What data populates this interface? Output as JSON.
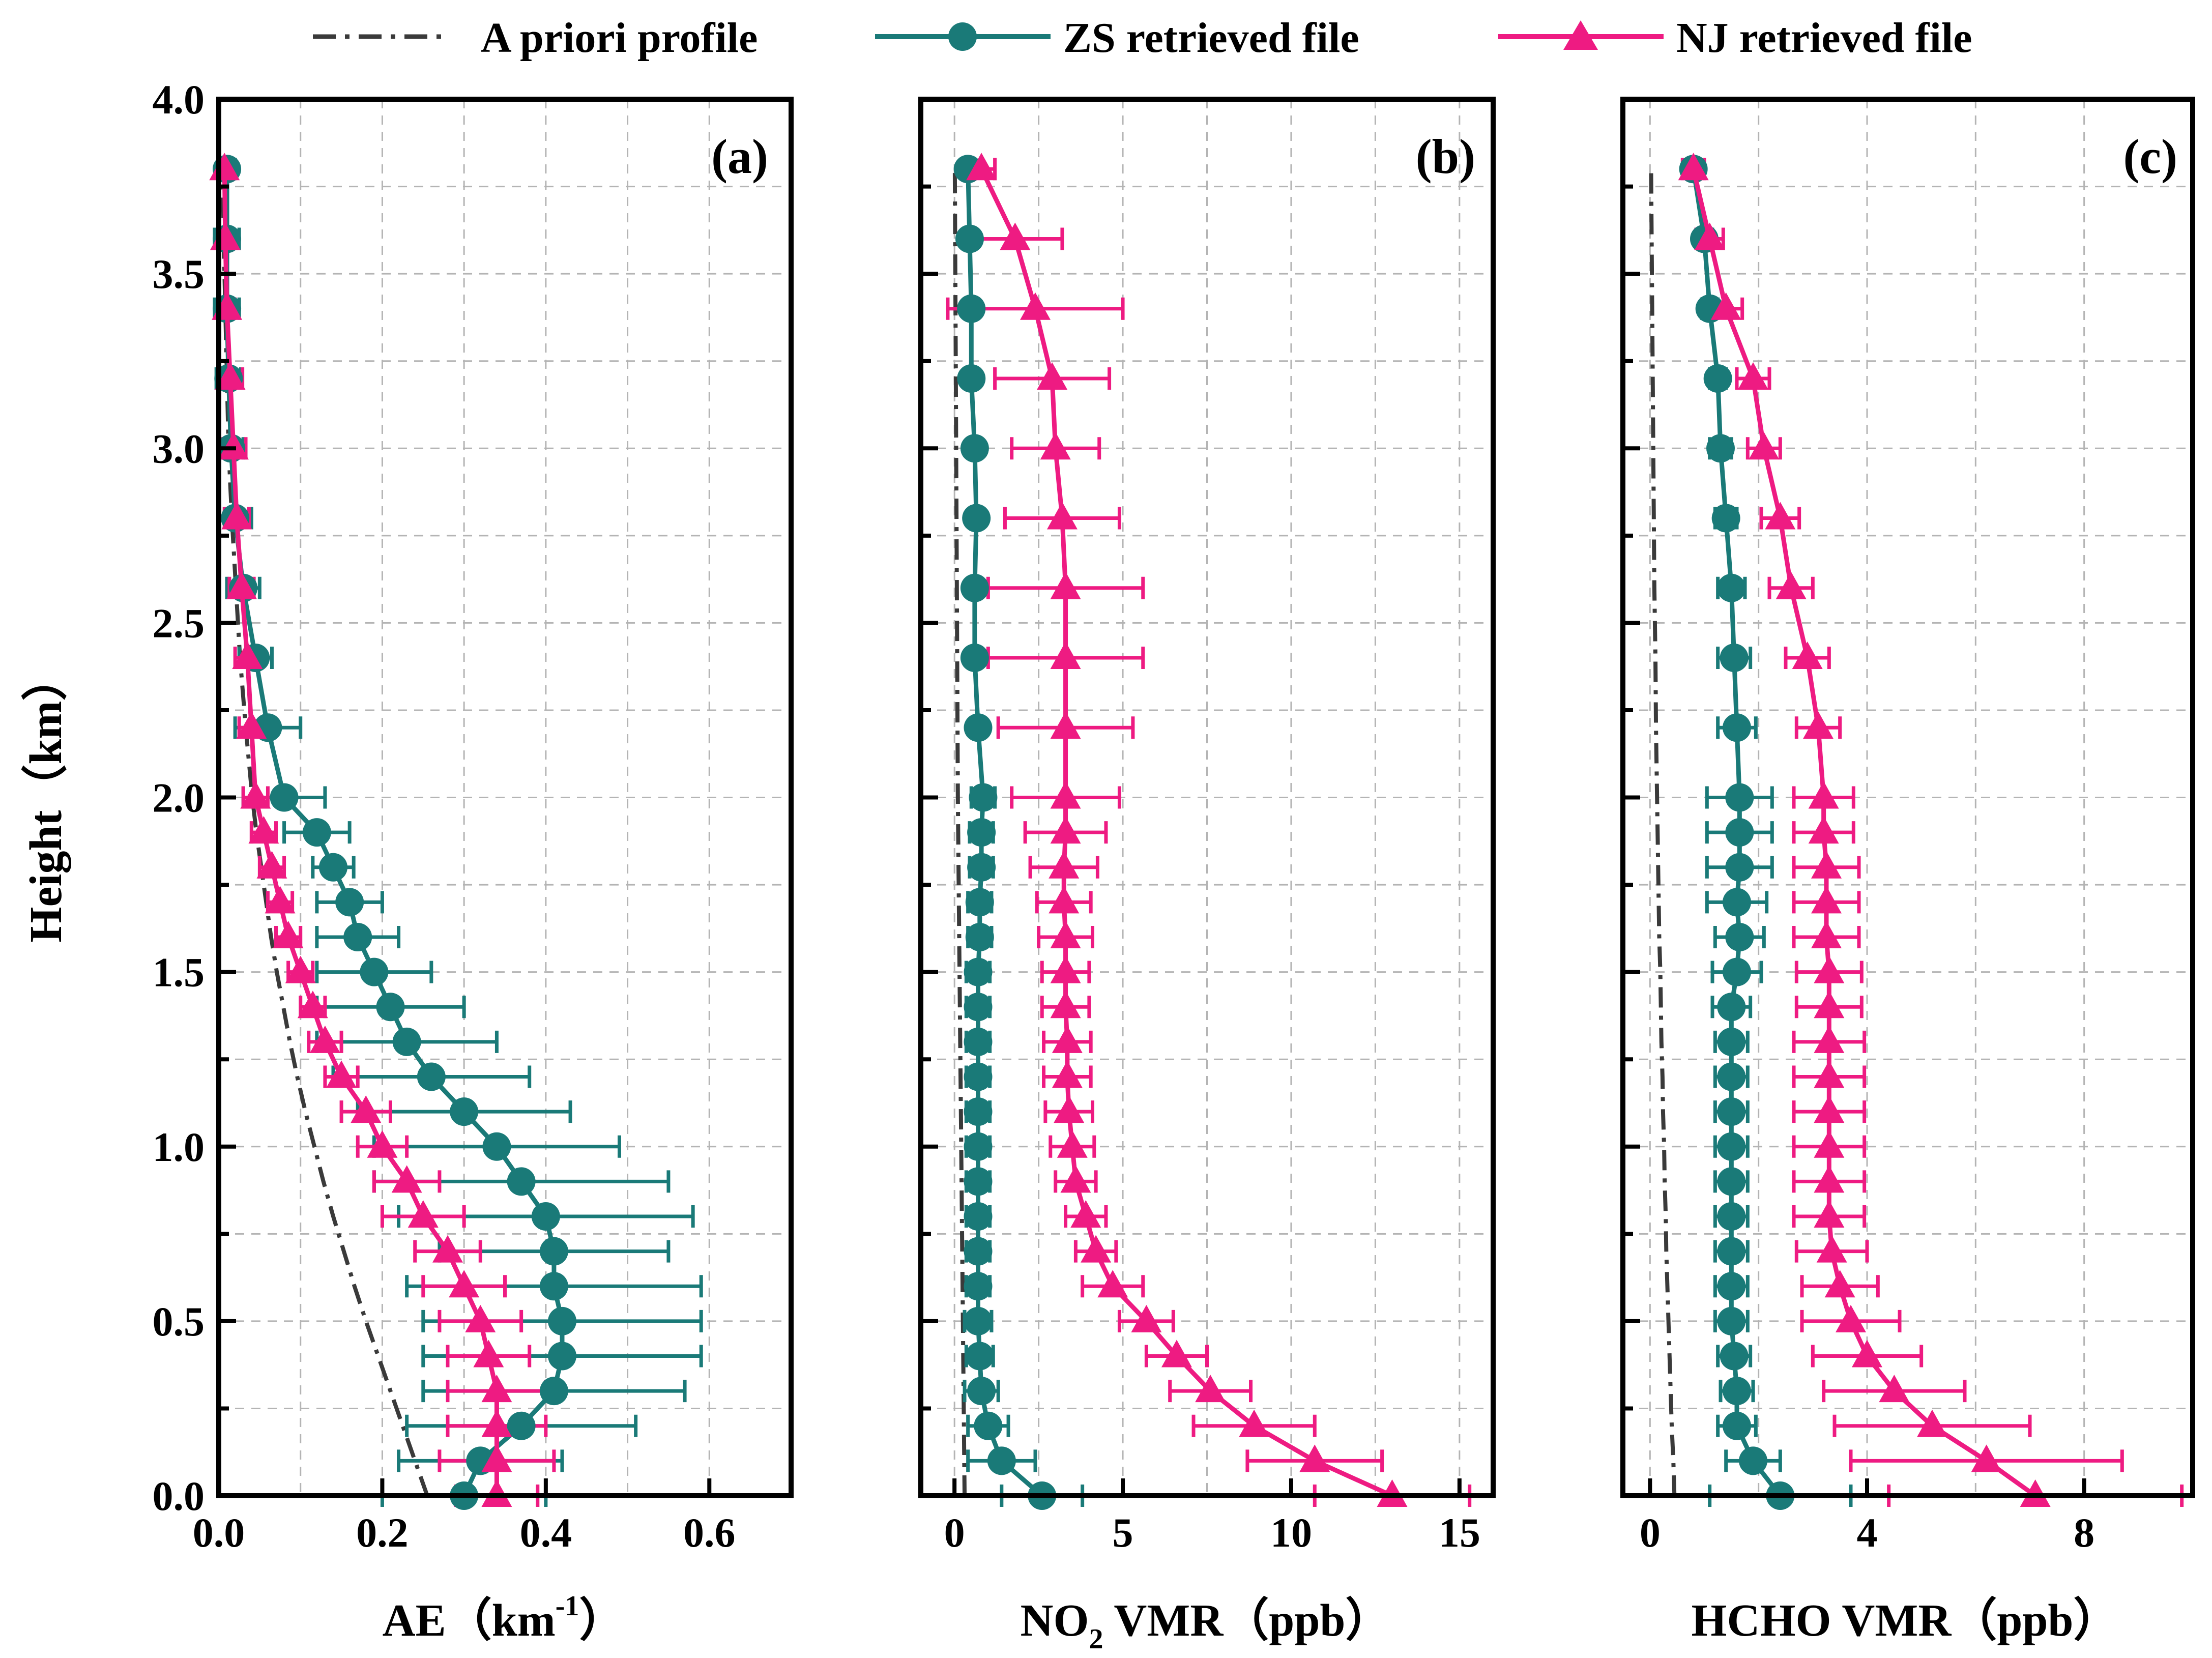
{
  "colors": {
    "apriori": "#3a3a3a",
    "zs": "#1a7a78",
    "nj": "#ee1b82",
    "grid": "#b4b4b4"
  },
  "legend": {
    "apriori": "A priori profile",
    "zs": "ZS retrieved file",
    "nj": "NJ retrieved file"
  },
  "chart_data": [
    {
      "type": "line",
      "panel_label": "(a)",
      "xlabel": "AE（km",
      "xlabel_sup": "-1",
      "xlabel_close": "）",
      "ylabel": "Height（km）",
      "xlim": [
        0,
        0.7
      ],
      "ylim": [
        0,
        4.0
      ],
      "xticks": [
        0.0,
        0.2,
        0.4,
        0.6
      ],
      "xtick_labels": [
        "0.0",
        "0.2",
        "0.4",
        "0.6"
      ],
      "yticks": [
        0.0,
        0.5,
        1.0,
        1.5,
        2.0,
        2.5,
        3.0,
        3.5,
        4.0
      ],
      "ytick_labels": [
        "0.0",
        "0.5",
        "1.0",
        "1.5",
        "2.0",
        "2.5",
        "3.0",
        "3.5",
        "4.0"
      ],
      "y": [
        0.0,
        0.1,
        0.2,
        0.3,
        0.4,
        0.5,
        0.6,
        0.7,
        0.8,
        0.9,
        1.0,
        1.1,
        1.2,
        1.3,
        1.4,
        1.5,
        1.6,
        1.7,
        1.8,
        1.9,
        2.0,
        2.2,
        2.4,
        2.6,
        2.8,
        3.0,
        3.2,
        3.4,
        3.6,
        3.8
      ],
      "series": [
        {
          "name": "A priori profile",
          "x": [
            0.255,
            0.24,
            0.225,
            0.21,
            0.195,
            0.18,
            0.166,
            0.153,
            0.14,
            0.128,
            0.117,
            0.106,
            0.096,
            0.087,
            0.079,
            0.071,
            0.064,
            0.058,
            0.052,
            0.046,
            0.041,
            0.033,
            0.026,
            0.021,
            0.016,
            0.012,
            0.01,
            0.008,
            0.006,
            0.005
          ]
        },
        {
          "name": "ZS retrieved file",
          "x": [
            0.3,
            0.32,
            0.37,
            0.41,
            0.42,
            0.42,
            0.41,
            0.41,
            0.4,
            0.37,
            0.34,
            0.3,
            0.26,
            0.23,
            0.21,
            0.19,
            0.17,
            0.16,
            0.14,
            0.12,
            0.08,
            0.06,
            0.045,
            0.03,
            0.02,
            0.015,
            0.012,
            0.01,
            0.01,
            0.01
          ],
          "err": [
            0.1,
            0.1,
            0.14,
            0.16,
            0.17,
            0.17,
            0.18,
            0.14,
            0.18,
            0.18,
            0.15,
            0.13,
            0.12,
            0.11,
            0.09,
            0.07,
            0.05,
            0.04,
            0.025,
            0.04,
            0.05,
            0.04,
            0.02,
            0.02,
            0.02,
            0.015,
            0.015,
            0.015,
            0.015,
            0.01
          ]
        },
        {
          "name": "NJ retrieved file",
          "x": [
            0.34,
            0.34,
            0.34,
            0.34,
            0.33,
            0.32,
            0.3,
            0.28,
            0.25,
            0.23,
            0.2,
            0.18,
            0.15,
            0.13,
            0.115,
            0.1,
            0.085,
            0.075,
            0.065,
            0.055,
            0.045,
            0.04,
            0.035,
            0.028,
            0.022,
            0.018,
            0.014,
            0.01,
            0.008,
            0.007
          ],
          "err": [
            0.05,
            0.07,
            0.06,
            0.06,
            0.05,
            0.05,
            0.05,
            0.04,
            0.05,
            0.04,
            0.03,
            0.03,
            0.02,
            0.02,
            0.015,
            0.015,
            0.015,
            0.015,
            0.015,
            0.015,
            0.015,
            0.015,
            0.015,
            0.015,
            0.015,
            0.015,
            0.015,
            0.01,
            0.008,
            0.007
          ]
        }
      ]
    },
    {
      "type": "line",
      "panel_label": "(b)",
      "xlabel": "NO",
      "xlabel_sub": "2",
      "xlabel_rest": " VMR（ppb）",
      "xlim": [
        -1,
        16
      ],
      "ylim": [
        0,
        4.0
      ],
      "xticks": [
        0,
        5,
        10,
        15
      ],
      "xtick_labels": [
        "0",
        "5",
        "10",
        "15"
      ],
      "y": [
        0.0,
        0.1,
        0.2,
        0.3,
        0.4,
        0.5,
        0.6,
        0.7,
        0.8,
        0.9,
        1.0,
        1.1,
        1.2,
        1.3,
        1.4,
        1.5,
        1.6,
        1.7,
        1.8,
        1.9,
        2.0,
        2.2,
        2.4,
        2.6,
        2.8,
        3.0,
        3.2,
        3.4,
        3.6,
        3.8
      ],
      "series": [
        {
          "name": "A priori profile",
          "x": [
            0.3,
            0.29,
            0.28,
            0.27,
            0.26,
            0.25,
            0.24,
            0.23,
            0.22,
            0.21,
            0.2,
            0.19,
            0.18,
            0.17,
            0.16,
            0.15,
            0.14,
            0.13,
            0.12,
            0.11,
            0.1,
            0.09,
            0.08,
            0.07,
            0.06,
            0.05,
            0.04,
            0.03,
            0.02,
            0.01
          ]
        },
        {
          "name": "ZS retrieved file",
          "x": [
            2.6,
            1.4,
            1.0,
            0.8,
            0.75,
            0.7,
            0.7,
            0.7,
            0.7,
            0.7,
            0.7,
            0.7,
            0.7,
            0.7,
            0.7,
            0.7,
            0.75,
            0.75,
            0.8,
            0.8,
            0.85,
            0.7,
            0.6,
            0.6,
            0.65,
            0.6,
            0.5,
            0.5,
            0.45,
            0.4
          ],
          "err": [
            1.2,
            1.0,
            0.6,
            0.5,
            0.4,
            0.4,
            0.35,
            0.35,
            0.35,
            0.35,
            0.35,
            0.35,
            0.35,
            0.35,
            0.35,
            0.35,
            0.35,
            0.35,
            0.35,
            0.35,
            0.35,
            0.2,
            0.2,
            0.2,
            0.2,
            0.2,
            0.2,
            0.2,
            0.2,
            0.2
          ]
        },
        {
          "name": "NJ retrieved file",
          "x": [
            13.0,
            10.7,
            8.9,
            7.6,
            6.6,
            5.7,
            4.7,
            4.2,
            3.9,
            3.6,
            3.5,
            3.4,
            3.35,
            3.35,
            3.3,
            3.3,
            3.3,
            3.25,
            3.25,
            3.3,
            3.3,
            3.3,
            3.3,
            3.3,
            3.2,
            3.0,
            2.9,
            2.4,
            1.8,
            0.8
          ],
          "err": [
            2.3,
            2.0,
            1.8,
            1.2,
            0.9,
            0.8,
            0.9,
            0.6,
            0.6,
            0.6,
            0.65,
            0.7,
            0.7,
            0.7,
            0.7,
            0.7,
            0.8,
            0.8,
            1.0,
            1.2,
            1.6,
            2.0,
            2.3,
            2.3,
            1.7,
            1.3,
            1.7,
            2.6,
            1.4,
            0.4
          ]
        }
      ]
    },
    {
      "type": "line",
      "panel_label": "(c)",
      "xlabel": "HCHO VMR（ppb）",
      "xlim": [
        -0.5,
        10
      ],
      "ylim": [
        0,
        4.0
      ],
      "xticks": [
        0,
        4,
        8
      ],
      "xtick_labels": [
        "0",
        "4",
        "8"
      ],
      "y": [
        0.0,
        0.1,
        0.2,
        0.3,
        0.4,
        0.5,
        0.6,
        0.7,
        0.8,
        0.9,
        1.0,
        1.1,
        1.2,
        1.3,
        1.4,
        1.5,
        1.6,
        1.7,
        1.8,
        1.9,
        2.0,
        2.2,
        2.4,
        2.6,
        2.8,
        3.0,
        3.2,
        3.4,
        3.6,
        3.8
      ],
      "series": [
        {
          "name": "A priori profile",
          "x": [
            0.45,
            0.43,
            0.4,
            0.38,
            0.36,
            0.34,
            0.32,
            0.3,
            0.29,
            0.27,
            0.26,
            0.24,
            0.23,
            0.21,
            0.2,
            0.19,
            0.17,
            0.16,
            0.15,
            0.14,
            0.13,
            0.11,
            0.1,
            0.08,
            0.07,
            0.06,
            0.05,
            0.04,
            0.03,
            0.02
          ]
        },
        {
          "name": "ZS retrieved file",
          "x": [
            2.4,
            1.9,
            1.6,
            1.6,
            1.55,
            1.5,
            1.5,
            1.5,
            1.5,
            1.5,
            1.5,
            1.5,
            1.5,
            1.5,
            1.5,
            1.6,
            1.65,
            1.6,
            1.65,
            1.65,
            1.65,
            1.6,
            1.55,
            1.5,
            1.4,
            1.3,
            1.25,
            1.1,
            1.0,
            0.8
          ],
          "err": [
            1.3,
            0.5,
            0.35,
            0.3,
            0.3,
            0.3,
            0.3,
            0.3,
            0.3,
            0.3,
            0.3,
            0.3,
            0.3,
            0.3,
            0.35,
            0.45,
            0.45,
            0.55,
            0.6,
            0.6,
            0.6,
            0.35,
            0.3,
            0.25,
            0.2,
            0.2,
            0.15,
            0.15,
            0.15,
            0.1
          ]
        },
        {
          "name": "NJ retrieved file",
          "x": [
            7.1,
            6.2,
            5.2,
            4.5,
            4.0,
            3.7,
            3.5,
            3.35,
            3.3,
            3.3,
            3.3,
            3.3,
            3.3,
            3.3,
            3.3,
            3.3,
            3.25,
            3.25,
            3.25,
            3.2,
            3.2,
            3.1,
            2.9,
            2.6,
            2.4,
            2.1,
            1.9,
            1.4,
            1.1,
            0.8
          ],
          "err": [
            2.7,
            2.5,
            1.8,
            1.3,
            1.0,
            0.9,
            0.7,
            0.65,
            0.65,
            0.65,
            0.65,
            0.65,
            0.65,
            0.65,
            0.6,
            0.6,
            0.6,
            0.6,
            0.6,
            0.55,
            0.55,
            0.4,
            0.4,
            0.4,
            0.35,
            0.3,
            0.3,
            0.3,
            0.25,
            0.2
          ]
        }
      ]
    }
  ]
}
